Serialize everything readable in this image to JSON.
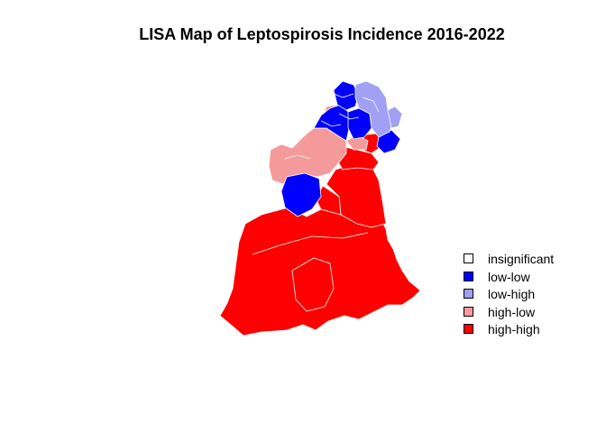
{
  "title": "LISA Map of Leptospirosis Incidence 2016-2022",
  "legend": {
    "items": [
      {
        "label": "insignificant",
        "color": "#FFFFFF"
      },
      {
        "label": "low-low",
        "color": "#0000FF"
      },
      {
        "label": "low-high",
        "color": "#A0A0F5"
      },
      {
        "label": "high-low",
        "color": "#F59A9A"
      },
      {
        "label": "high-high",
        "color": "#FF0000"
      }
    ]
  },
  "map": {
    "region_outline_color": "#FFFFFF",
    "region_classes": [
      "high-high",
      "high-low",
      "low-low",
      "low-high"
    ]
  }
}
